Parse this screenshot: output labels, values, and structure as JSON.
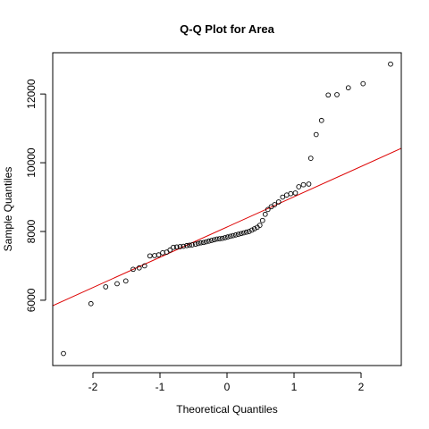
{
  "chart_data": {
    "type": "scatter",
    "title": "Q-Q Plot for Area",
    "xlabel": "Theoretical Quantiles",
    "ylabel": "Sample Quantiles",
    "xlim": [
      -2.6,
      2.6
    ],
    "ylim": [
      4100,
      13200
    ],
    "x_ticks": [
      -2,
      -1,
      0,
      1,
      2
    ],
    "x_tick_labels": [
      "-2",
      "-1",
      "0",
      "1",
      "2"
    ],
    "y_ticks": [
      6000,
      8000,
      10000,
      12000
    ],
    "y_tick_labels": [
      "6000",
      "8000",
      "10000",
      "12000"
    ],
    "grid": false,
    "colors": {
      "points": "#000000",
      "reference_line": "#dd0000"
    },
    "reference_line": {
      "slope": 880,
      "intercept": 8130
    },
    "points": [
      {
        "x": -2.44,
        "y": 4450
      },
      {
        "x": -2.03,
        "y": 5900
      },
      {
        "x": -1.81,
        "y": 6390
      },
      {
        "x": -1.64,
        "y": 6480
      },
      {
        "x": -1.51,
        "y": 6560
      },
      {
        "x": -1.4,
        "y": 6900
      },
      {
        "x": -1.31,
        "y": 6940
      },
      {
        "x": -1.23,
        "y": 7000
      },
      {
        "x": -1.15,
        "y": 7290
      },
      {
        "x": -1.08,
        "y": 7300
      },
      {
        "x": -1.02,
        "y": 7320
      },
      {
        "x": -0.96,
        "y": 7380
      },
      {
        "x": -0.9,
        "y": 7400
      },
      {
        "x": -0.85,
        "y": 7460
      },
      {
        "x": -0.8,
        "y": 7540
      },
      {
        "x": -0.75,
        "y": 7550
      },
      {
        "x": -0.7,
        "y": 7560
      },
      {
        "x": -0.65,
        "y": 7570
      },
      {
        "x": -0.6,
        "y": 7590
      },
      {
        "x": -0.56,
        "y": 7600
      },
      {
        "x": -0.52,
        "y": 7610
      },
      {
        "x": -0.47,
        "y": 7630
      },
      {
        "x": -0.43,
        "y": 7650
      },
      {
        "x": -0.39,
        "y": 7670
      },
      {
        "x": -0.35,
        "y": 7680
      },
      {
        "x": -0.31,
        "y": 7700
      },
      {
        "x": -0.27,
        "y": 7720
      },
      {
        "x": -0.23,
        "y": 7740
      },
      {
        "x": -0.19,
        "y": 7760
      },
      {
        "x": -0.15,
        "y": 7780
      },
      {
        "x": -0.11,
        "y": 7790
      },
      {
        "x": -0.07,
        "y": 7800
      },
      {
        "x": -0.03,
        "y": 7820
      },
      {
        "x": 0.01,
        "y": 7840
      },
      {
        "x": 0.05,
        "y": 7860
      },
      {
        "x": 0.09,
        "y": 7880
      },
      {
        "x": 0.13,
        "y": 7900
      },
      {
        "x": 0.17,
        "y": 7920
      },
      {
        "x": 0.21,
        "y": 7940
      },
      {
        "x": 0.25,
        "y": 7960
      },
      {
        "x": 0.29,
        "y": 7980
      },
      {
        "x": 0.33,
        "y": 8000
      },
      {
        "x": 0.37,
        "y": 8040
      },
      {
        "x": 0.41,
        "y": 8080
      },
      {
        "x": 0.45,
        "y": 8120
      },
      {
        "x": 0.49,
        "y": 8180
      },
      {
        "x": 0.53,
        "y": 8320
      },
      {
        "x": 0.57,
        "y": 8500
      },
      {
        "x": 0.61,
        "y": 8640
      },
      {
        "x": 0.66,
        "y": 8720
      },
      {
        "x": 0.71,
        "y": 8780
      },
      {
        "x": 0.77,
        "y": 8860
      },
      {
        "x": 0.83,
        "y": 9000
      },
      {
        "x": 0.89,
        "y": 9060
      },
      {
        "x": 0.95,
        "y": 9100
      },
      {
        "x": 1.02,
        "y": 9120
      },
      {
        "x": 1.07,
        "y": 9300
      },
      {
        "x": 1.14,
        "y": 9360
      },
      {
        "x": 1.22,
        "y": 9380
      },
      {
        "x": 1.25,
        "y": 10130
      },
      {
        "x": 1.33,
        "y": 10820
      },
      {
        "x": 1.41,
        "y": 11230
      },
      {
        "x": 1.51,
        "y": 11970
      },
      {
        "x": 1.64,
        "y": 11980
      },
      {
        "x": 1.81,
        "y": 12180
      },
      {
        "x": 2.03,
        "y": 12300
      },
      {
        "x": 2.44,
        "y": 12870
      }
    ]
  }
}
